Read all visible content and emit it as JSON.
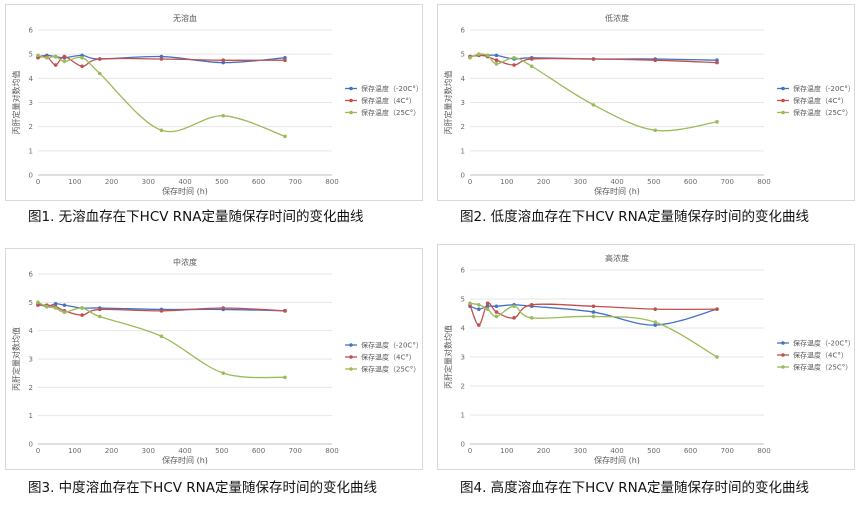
{
  "colors": {
    "series_1": "#4472c4",
    "series_2": "#c0504d",
    "series_3": "#9bbb59"
  },
  "chart_data": [
    {
      "type": "line",
      "title": "无溶血",
      "xlabel": "保存时间 (h)",
      "ylabel": "丙肝定量对数均值",
      "xlim": [
        0,
        800
      ],
      "ylim": [
        0,
        6
      ],
      "xticks": [
        "0",
        "100",
        "200",
        "300",
        "400",
        "500",
        "600",
        "700",
        "800"
      ],
      "yticks": [
        "0",
        "1",
        "2",
        "3",
        "4",
        "5",
        "6"
      ],
      "legend_position": "right",
      "caption": "图1. 无溶血存在下HCV RNA定量随保存时间的变化曲线",
      "series": [
        {
          "name": "保存温度（-20C°）",
          "x": [
            0,
            24,
            48,
            72,
            120,
            168,
            336,
            504,
            672
          ],
          "y": [
            4.9,
            4.95,
            4.9,
            4.85,
            4.95,
            4.8,
            4.9,
            4.65,
            4.85
          ]
        },
        {
          "name": "保存温度（4C°）",
          "x": [
            0,
            24,
            48,
            72,
            120,
            168,
            336,
            504,
            672
          ],
          "y": [
            4.85,
            4.9,
            4.55,
            4.9,
            4.5,
            4.8,
            4.8,
            4.75,
            4.75
          ]
        },
        {
          "name": "保存温度（25C°）",
          "x": [
            0,
            24,
            48,
            72,
            120,
            168,
            336,
            504,
            672
          ],
          "y": [
            4.95,
            4.85,
            4.9,
            4.7,
            4.85,
            4.2,
            1.85,
            2.45,
            1.6
          ]
        }
      ]
    },
    {
      "type": "line",
      "title": "低浓度",
      "xlabel": "保存时间 (h)",
      "ylabel": "丙肝定量对数均值",
      "xlim": [
        0,
        800
      ],
      "ylim": [
        0,
        6
      ],
      "xticks": [
        "0",
        "100",
        "200",
        "300",
        "400",
        "500",
        "600",
        "700",
        "800"
      ],
      "yticks": [
        "0",
        "1",
        "2",
        "3",
        "4",
        "5",
        "6"
      ],
      "legend_position": "right",
      "caption": "图2. 低度溶血存在下HCV RNA定量随保存时间的变化曲线",
      "series": [
        {
          "name": "保存温度（-20C°）",
          "x": [
            0,
            24,
            48,
            72,
            120,
            168,
            336,
            504,
            672
          ],
          "y": [
            4.9,
            4.95,
            4.95,
            4.95,
            4.8,
            4.85,
            4.8,
            4.8,
            4.75
          ]
        },
        {
          "name": "保存温度（4C°）",
          "x": [
            0,
            24,
            48,
            72,
            120,
            168,
            336,
            504,
            672
          ],
          "y": [
            4.9,
            4.95,
            4.9,
            4.75,
            4.55,
            4.8,
            4.8,
            4.75,
            4.65
          ]
        },
        {
          "name": "保存温度（25C°）",
          "x": [
            0,
            24,
            48,
            72,
            120,
            168,
            336,
            504,
            672
          ],
          "y": [
            4.85,
            5.0,
            4.95,
            4.6,
            4.85,
            4.5,
            2.9,
            1.85,
            2.2
          ]
        }
      ]
    },
    {
      "type": "line",
      "title": "中浓度",
      "xlabel": "保存时间 (h)",
      "ylabel": "丙肝定量对数均值",
      "xlim": [
        0,
        800
      ],
      "ylim": [
        0,
        6
      ],
      "xticks": [
        "0",
        "100",
        "200",
        "300",
        "400",
        "500",
        "600",
        "700",
        "800"
      ],
      "yticks": [
        "0",
        "1",
        "2",
        "3",
        "4",
        "5",
        "6"
      ],
      "legend_position": "right",
      "caption": "图3. 中度溶血存在下HCV RNA定量随保存时间的变化曲线",
      "series": [
        {
          "name": "保存温度（-20C°）",
          "x": [
            0,
            24,
            48,
            72,
            120,
            168,
            336,
            504,
            672
          ],
          "y": [
            4.95,
            4.85,
            4.95,
            4.9,
            4.8,
            4.8,
            4.75,
            4.75,
            4.7
          ]
        },
        {
          "name": "保存温度（4C°）",
          "x": [
            0,
            24,
            48,
            72,
            120,
            168,
            336,
            504,
            672
          ],
          "y": [
            4.9,
            4.9,
            4.85,
            4.7,
            4.55,
            4.75,
            4.7,
            4.8,
            4.7
          ]
        },
        {
          "name": "保存温度（25C°）",
          "x": [
            0,
            24,
            48,
            72,
            120,
            168,
            336,
            504,
            672
          ],
          "y": [
            5.0,
            4.85,
            4.8,
            4.65,
            4.8,
            4.5,
            3.8,
            2.5,
            2.35
          ]
        }
      ]
    },
    {
      "type": "line",
      "title": "高浓度",
      "xlabel": "保存时间 (h)",
      "ylabel": "丙肝定量对数均值",
      "xlim": [
        0,
        800
      ],
      "ylim": [
        0,
        6
      ],
      "xticks": [
        "0",
        "100",
        "200",
        "300",
        "400",
        "500",
        "600",
        "700",
        "800"
      ],
      "yticks": [
        "0",
        "1",
        "2",
        "3",
        "4",
        "5",
        "6"
      ],
      "legend_position": "right",
      "caption": "图4. 高度溶血存在下HCV RNA定量随保存时间的变化曲线",
      "series": [
        {
          "name": "保存温度（-20C°）",
          "x": [
            0,
            24,
            48,
            72,
            120,
            168,
            336,
            504,
            672
          ],
          "y": [
            4.75,
            4.65,
            4.75,
            4.75,
            4.8,
            4.75,
            4.55,
            4.1,
            4.65
          ]
        },
        {
          "name": "保存温度（4C°）",
          "x": [
            0,
            24,
            48,
            72,
            120,
            168,
            336,
            504,
            672
          ],
          "y": [
            4.8,
            4.1,
            4.85,
            4.55,
            4.35,
            4.8,
            4.75,
            4.65,
            4.65
          ]
        },
        {
          "name": "保存温度（25C°）",
          "x": [
            0,
            24,
            48,
            72,
            120,
            168,
            336,
            504,
            672
          ],
          "y": [
            4.85,
            4.8,
            4.65,
            4.4,
            4.75,
            4.35,
            4.4,
            4.2,
            3.0
          ]
        }
      ]
    }
  ]
}
